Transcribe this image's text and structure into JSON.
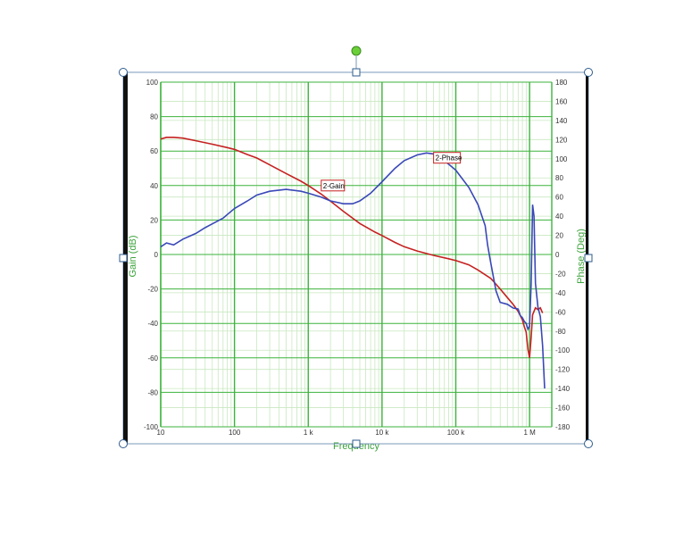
{
  "chart_data": {
    "type": "line",
    "x_scale": "log",
    "xlim": [
      10,
      2000000
    ],
    "ylim_left": [
      -100,
      100
    ],
    "ylim_right": [
      -180,
      180
    ],
    "ylabel": "Gain (dB)",
    "ylabel_right": "Phase (Deg)",
    "xlabel": "Frequency",
    "x_ticks": [
      {
        "value": 10,
        "label": "10"
      },
      {
        "value": 100,
        "label": "100"
      },
      {
        "value": 1000,
        "label": "1 k"
      },
      {
        "value": 10000,
        "label": "10 k"
      },
      {
        "value": 100000,
        "label": "100 k"
      },
      {
        "value": 1000000,
        "label": "1 M"
      }
    ],
    "y_ticks_left": [
      "100",
      "80",
      "60",
      "40",
      "20",
      "0",
      "-20",
      "-40",
      "-60",
      "-80",
      "-100"
    ],
    "y_ticks_right": [
      "180",
      "160",
      "140",
      "120",
      "100",
      "80",
      "60",
      "40",
      "20",
      "0",
      "-20",
      "-40",
      "-60",
      "-80",
      "-100",
      "-120",
      "-140",
      "-160",
      "-180"
    ],
    "grid": true,
    "series": [
      {
        "name": "2-Gain",
        "axis": "left",
        "x": [
          10,
          12,
          15,
          20,
          30,
          50,
          80,
          100,
          150,
          200,
          300,
          500,
          800,
          1000,
          1500,
          2000,
          3000,
          5000,
          8000,
          10000,
          15000,
          20000,
          30000,
          50000,
          80000,
          100000,
          150000,
          200000,
          300000,
          400000,
          500000,
          600000,
          700000,
          800000,
          850000,
          900000,
          950000,
          1000000,
          1050000,
          1100000,
          1200000,
          1300000,
          1400000,
          1500000
        ],
        "y": [
          67,
          68,
          68,
          67.5,
          66,
          64,
          62,
          61,
          58,
          56,
          52,
          47,
          42.5,
          40,
          35,
          31,
          25,
          18,
          13,
          11,
          7,
          4.5,
          2,
          -0.5,
          -2.5,
          -3.5,
          -6,
          -9,
          -14,
          -20,
          -25,
          -29,
          -33,
          -38,
          -42,
          -45,
          -55,
          -60,
          -48,
          -35,
          -31,
          -32,
          -31,
          -34
        ]
      },
      {
        "name": "2-Phase",
        "axis": "right",
        "x": [
          10,
          12,
          15,
          20,
          30,
          40,
          50,
          70,
          100,
          150,
          200,
          300,
          500,
          800,
          1000,
          1500,
          2000,
          3000,
          4000,
          5000,
          7000,
          10000,
          15000,
          20000,
          30000,
          40000,
          50000,
          70000,
          100000,
          150000,
          200000,
          250000,
          270000,
          300000,
          350000,
          400000,
          500000,
          600000,
          700000,
          750000,
          800000,
          850000,
          900000,
          950000,
          1000000,
          1050000,
          1100000,
          1150000,
          1200000,
          1300000,
          1400000,
          1500000,
          1600000
        ],
        "y": [
          8,
          12,
          10,
          16,
          22,
          28,
          32,
          38,
          48,
          56,
          62,
          66,
          68,
          66,
          64,
          60,
          56,
          53,
          53,
          56,
          64,
          76,
          90,
          98,
          104,
          106,
          105,
          98,
          88,
          70,
          52,
          30,
          10,
          -10,
          -38,
          -50,
          -52,
          -56,
          -57,
          -64,
          -66,
          -70,
          -72,
          -78,
          -75,
          -30,
          52,
          40,
          -30,
          -55,
          -65,
          -95,
          -140
        ]
      }
    ],
    "annotations": [
      {
        "text": "2-Gain",
        "series": "2-Gain",
        "x": 1500,
        "y": 40
      },
      {
        "text": "2-Phase",
        "series": "2-Phase",
        "x": 50000,
        "y": 101
      }
    ]
  },
  "colors": {
    "frame": "#000000",
    "grid_major": "#3db33d",
    "grid_minor": "#c9e8c0",
    "gain_line": "#c62121",
    "phase_line": "#3a48b8",
    "axis_text": "#3da33d",
    "handle": "#2e5b8c",
    "rotate_handle": "#6bcf3a"
  }
}
